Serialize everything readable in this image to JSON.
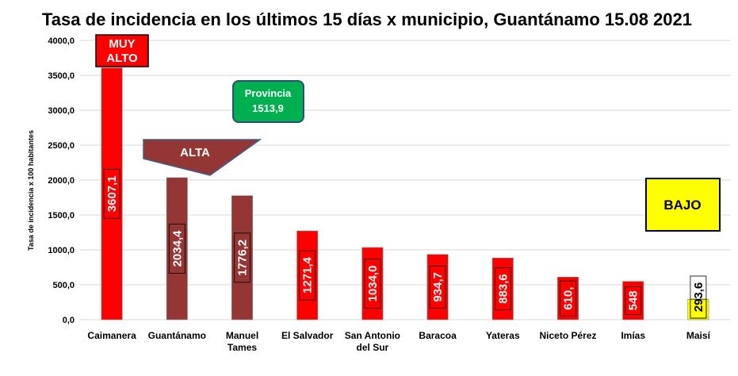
{
  "chart_data": {
    "type": "bar",
    "title": "Tasa de incidencia en los últimos 15 días x municipio, Guantánamo 15.08 2021",
    "ylabel": "Tasa de incidencia  x 100 habitantes",
    "xlabel": "",
    "ylim": [
      0,
      4000
    ],
    "yticks": [
      "0,0",
      "500,0",
      "1000,0",
      "1500,0",
      "2000,0",
      "2500,0",
      "3000,0",
      "3500,0",
      "4000,0"
    ],
    "grid": true,
    "categories": [
      [
        "Caimanera"
      ],
      [
        "Guantánamo"
      ],
      [
        "Manuel",
        "Tames"
      ],
      [
        "El Salvador"
      ],
      [
        "San Antonio",
        "del Sur"
      ],
      [
        "Baracoa"
      ],
      [
        "Yateras"
      ],
      [
        "Niceto Pérez"
      ],
      [
        "Imías"
      ],
      [
        "Maisí"
      ]
    ],
    "values": [
      3607.1,
      2034.4,
      1776.2,
      1271.4,
      1034.0,
      934.7,
      883.6,
      610.1,
      548.0,
      293.6
    ],
    "labels": [
      "3607,1",
      "2034,4",
      "1776,2",
      "1271,4",
      "1034,0",
      "934,7",
      "883,6",
      "610,",
      "548",
      "293,6"
    ],
    "colors": [
      "#ff0000",
      "#943634",
      "#943634",
      "#ff0000",
      "#ff0000",
      "#ff0000",
      "#ff0000",
      "#ff0000",
      "#ff0000",
      "#ffff00"
    ],
    "annotations": {
      "muy_alto": [
        "MUY",
        "ALTO"
      ],
      "alta": "ALTA",
      "provincia": [
        "Provincia",
        "1513,9"
      ],
      "bajo": "BAJO"
    }
  }
}
